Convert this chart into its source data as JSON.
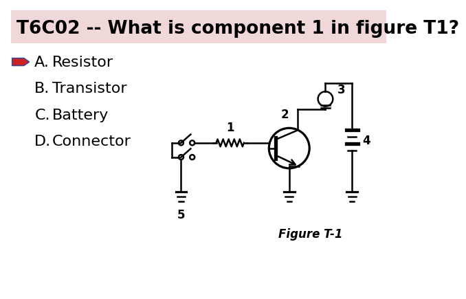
{
  "title": "T6C02 -- What is component 1 in figure T1?",
  "title_bg": "#f0d8d8",
  "title_fontsize": 19,
  "title_fontweight": "bold",
  "options": [
    [
      "A.",
      "Resistor"
    ],
    [
      "B.",
      "Transistor"
    ],
    [
      "C.",
      "Battery"
    ],
    [
      "D.",
      "Connector"
    ]
  ],
  "answer_index": 0,
  "arrow_color": "#cc0000",
  "arrow_outline": "#555599",
  "figure_label": "Figure T-1",
  "bg_color": "#ffffff",
  "text_color": "#000000",
  "circuit_lw": 1.8
}
